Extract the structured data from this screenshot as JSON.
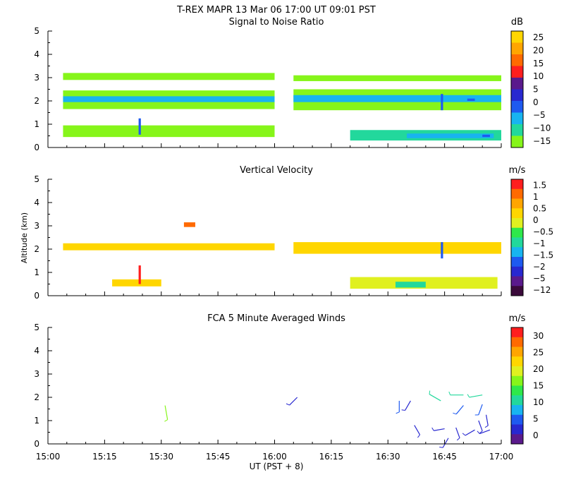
{
  "header": {
    "title": "T-REX   MAPR 13 Mar 06   17:00 UT   09:01   PST"
  },
  "xaxis": {
    "label": "UT  (PST + 8)",
    "ticks": [
      "15:00",
      "15:15",
      "15:30",
      "15:45",
      "16:00",
      "16:15",
      "16:30",
      "16:45",
      "17:00"
    ],
    "range_minutes": [
      0,
      120
    ]
  },
  "yaxis_label": "Altitude (km)",
  "colors": {
    "palette": [
      "#3b0a3b",
      "#5a1a8c",
      "#2828d0",
      "#1e5af0",
      "#18b4f0",
      "#22d89c",
      "#2ee84a",
      "#86f51a",
      "#e0f020",
      "#ffd600",
      "#ffa500",
      "#ff6a00",
      "#ff1e1e"
    ]
  },
  "chart_data": [
    {
      "type": "heatmap",
      "id": "snr",
      "title": "Signal to Noise Ratio",
      "unit": "dB",
      "ylim": [
        0,
        5
      ],
      "yticks": [
        "0",
        "1",
        "2",
        "3",
        "4",
        "5"
      ],
      "colorbar_labels": [
        "25",
        "20",
        "15",
        "10",
        "5",
        "0",
        "−5",
        "−10",
        "−15"
      ],
      "colorbar_colors": [
        "#ffd600",
        "#ffa500",
        "#ff6a00",
        "#ff1e1e",
        "#5a1a8c",
        "#2828d0",
        "#1e5af0",
        "#18b4f0",
        "#22d89c",
        "#86f51a"
      ],
      "data_gap_minutes": [
        60,
        65
      ],
      "bands": [
        {
          "t0": 4,
          "t1": 60,
          "z0": 2.9,
          "z1": 3.2,
          "value": -14
        },
        {
          "t0": 65,
          "t1": 120,
          "z0": 2.85,
          "z1": 3.1,
          "value": -14
        },
        {
          "t0": 4,
          "t1": 60,
          "z0": 1.65,
          "z1": 2.45,
          "value": -12
        },
        {
          "t0": 65,
          "t1": 120,
          "z0": 1.6,
          "z1": 2.5,
          "value": -12
        },
        {
          "t0": 4,
          "t1": 60,
          "z0": 1.95,
          "z1": 2.2,
          "value": -5
        },
        {
          "t0": 65,
          "t1": 120,
          "z0": 1.95,
          "z1": 2.25,
          "value": -5
        },
        {
          "t0": 4,
          "t1": 60,
          "z0": 0.45,
          "z1": 0.95,
          "value": -12
        },
        {
          "t0": 80,
          "t1": 120,
          "z0": 0.3,
          "z1": 0.75,
          "value": -10
        },
        {
          "t0": 95,
          "t1": 118,
          "z0": 0.4,
          "z1": 0.6,
          "value": -5
        },
        {
          "t0": 24,
          "t1": 24.6,
          "z0": 0.55,
          "z1": 1.25,
          "value": 0
        },
        {
          "t0": 104,
          "t1": 104.6,
          "z0": 1.6,
          "z1": 2.3,
          "value": 0
        },
        {
          "t0": 111,
          "t1": 113,
          "z0": 2.0,
          "z1": 2.1,
          "value": 0
        },
        {
          "t0": 115,
          "t1": 117,
          "z0": 0.45,
          "z1": 0.55,
          "value": 0
        }
      ]
    },
    {
      "type": "heatmap",
      "id": "vel",
      "title": "Vertical Velocity",
      "unit": "m/s",
      "ylim": [
        0,
        5
      ],
      "yticks": [
        "0",
        "1",
        "2",
        "3",
        "4",
        "5"
      ],
      "colorbar_labels": [
        "1.5",
        "1",
        "0.5",
        "0",
        "−0.5",
        "−1",
        "−1.5",
        "−2",
        "−5",
        "−12"
      ],
      "colorbar_colors": [
        "#ff1e1e",
        "#ff6a00",
        "#ffa500",
        "#ffd600",
        "#e0f020",
        "#2ee84a",
        "#22d89c",
        "#18b4f0",
        "#1e5af0",
        "#2828d0",
        "#5a1a8c",
        "#3b0a3b"
      ],
      "data_gap_minutes": [
        60,
        65
      ],
      "bands": [
        {
          "t0": 4,
          "t1": 60,
          "z0": 1.95,
          "z1": 2.25,
          "value": 0
        },
        {
          "t0": 65,
          "t1": 120,
          "z0": 1.8,
          "z1": 2.3,
          "value": 0
        },
        {
          "t0": 17,
          "t1": 30,
          "z0": 0.4,
          "z1": 0.7,
          "value": 0
        },
        {
          "t0": 80,
          "t1": 119,
          "z0": 0.3,
          "z1": 0.8,
          "value": -0.5
        },
        {
          "t0": 92,
          "t1": 100,
          "z0": 0.35,
          "z1": 0.6,
          "value": -1
        },
        {
          "t0": 24,
          "t1": 24.6,
          "z0": 0.5,
          "z1": 1.3,
          "value": 1.5
        },
        {
          "t0": 104,
          "t1": 104.6,
          "z0": 1.6,
          "z1": 2.3,
          "value": -2
        },
        {
          "t0": 36,
          "t1": 39,
          "z0": 2.95,
          "z1": 3.15,
          "value": 1
        }
      ]
    },
    {
      "type": "scatter",
      "id": "wind",
      "title": "FCA 5 Minute Averaged Winds",
      "unit": "m/s",
      "ylim": [
        0,
        5
      ],
      "yticks": [
        "0",
        "1",
        "2",
        "3",
        "4",
        "5"
      ],
      "colorbar_labels": [
        "30",
        "25",
        "20",
        "15",
        "10",
        "5",
        "0"
      ],
      "colorbar_colors": [
        "#ff1e1e",
        "#ff6a00",
        "#ffa500",
        "#ffd600",
        "#e0f020",
        "#86f51a",
        "#2ee84a",
        "#22d89c",
        "#18b4f0",
        "#1e5af0",
        "#2828d0",
        "#5a1a8c"
      ],
      "barbs": [
        {
          "t": 31,
          "z": 1.65,
          "dir": 170,
          "speed": 16
        },
        {
          "t": 66,
          "z": 2.0,
          "dir": 225,
          "speed": 4
        },
        {
          "t": 93,
          "z": 1.85,
          "dir": 180,
          "speed": 5
        },
        {
          "t": 96,
          "z": 1.85,
          "dir": 210,
          "speed": 4
        },
        {
          "t": 104,
          "z": 1.85,
          "dir": 300,
          "speed": 12
        },
        {
          "t": 110,
          "z": 2.1,
          "dir": 270,
          "speed": 12
        },
        {
          "t": 115,
          "z": 2.1,
          "dir": 260,
          "speed": 12
        },
        {
          "t": 110,
          "z": 1.65,
          "dir": 220,
          "speed": 5
        },
        {
          "t": 115,
          "z": 1.7,
          "dir": 200,
          "speed": 5
        },
        {
          "t": 97,
          "z": 0.8,
          "dir": 150,
          "speed": 4
        },
        {
          "t": 105,
          "z": 0.65,
          "dir": 260,
          "speed": 4
        },
        {
          "t": 108,
          "z": 0.7,
          "dir": 160,
          "speed": 4
        },
        {
          "t": 114,
          "z": 1.0,
          "dir": 160,
          "speed": 4
        },
        {
          "t": 116,
          "z": 1.25,
          "dir": 170,
          "speed": 4
        },
        {
          "t": 113,
          "z": 0.6,
          "dir": 240,
          "speed": 4
        },
        {
          "t": 117,
          "z": 0.6,
          "dir": 250,
          "speed": 4
        },
        {
          "t": 106,
          "z": 0.25,
          "dir": 210,
          "speed": 4
        }
      ]
    }
  ]
}
